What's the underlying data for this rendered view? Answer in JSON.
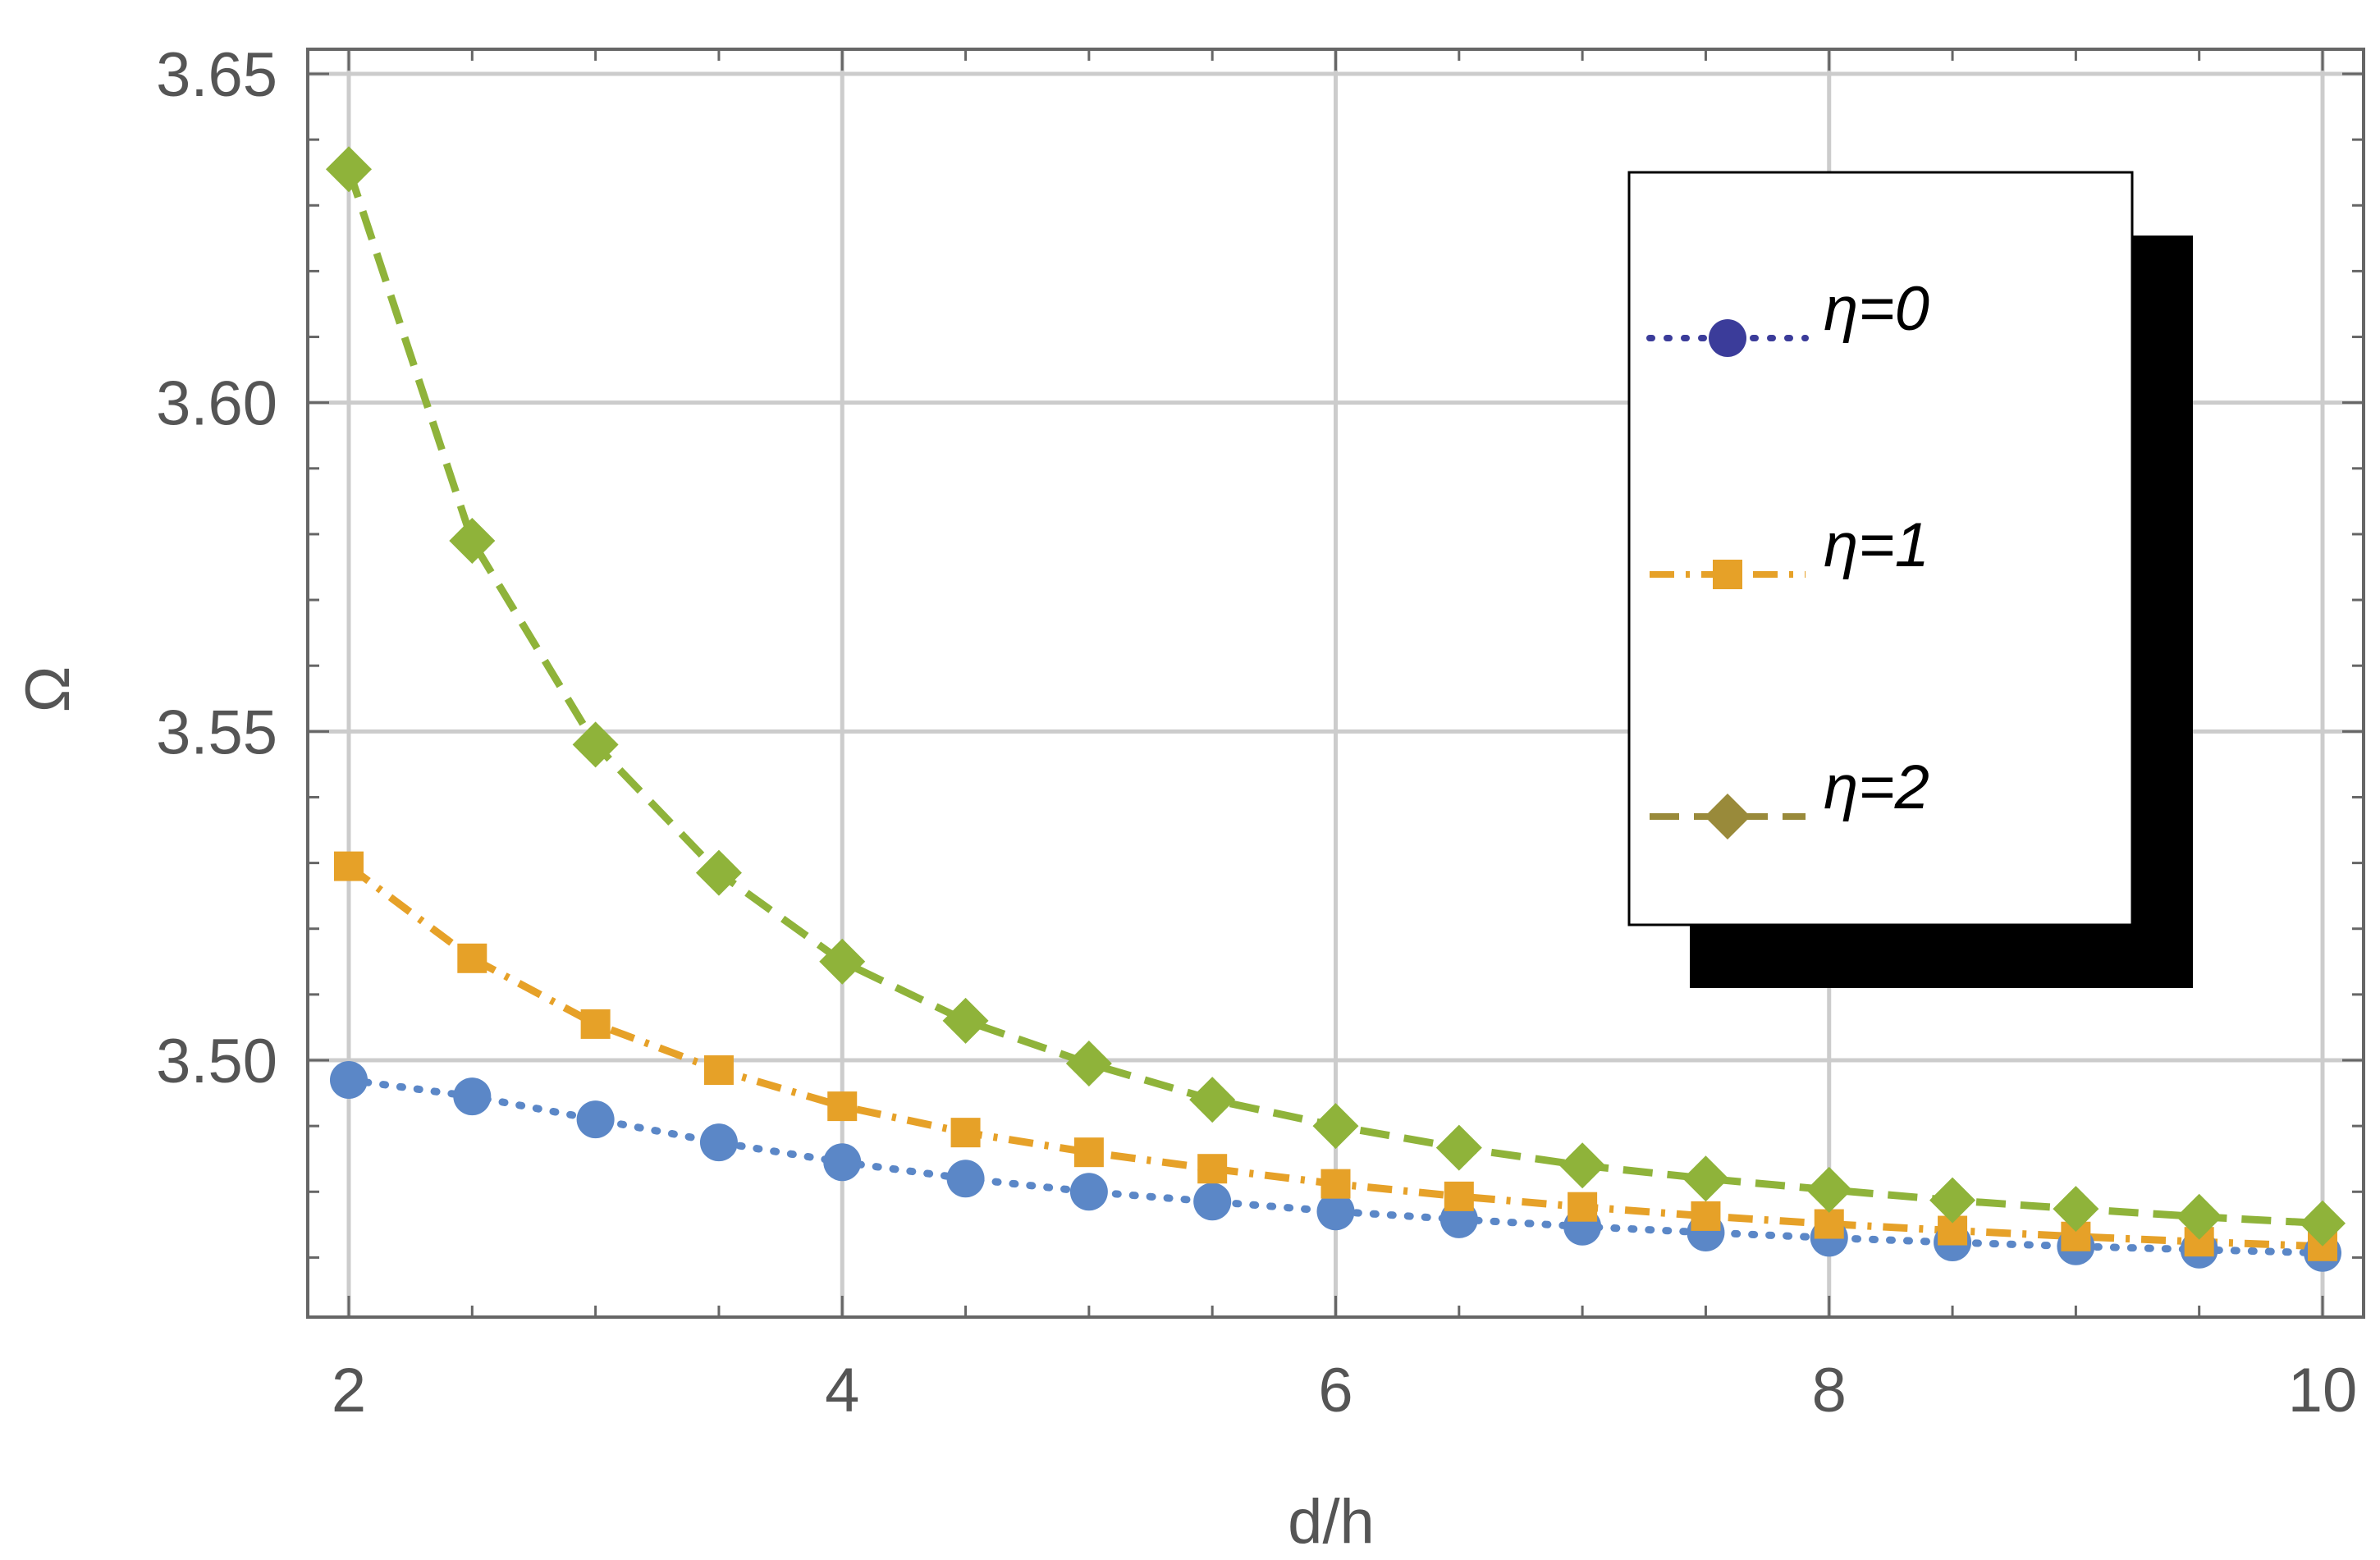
{
  "chart_data": {
    "type": "line",
    "xlabel": "d/h",
    "ylabel": "Ω",
    "xlim": [
      1.85,
      10.2
    ],
    "ylim": [
      3.4615,
      3.655
    ],
    "x_ticks": [
      2,
      4,
      6,
      8,
      10
    ],
    "x_tick_labels": [
      "2",
      "4",
      "6",
      "8",
      "10"
    ],
    "y_ticks": [
      3.5,
      3.55,
      3.6,
      3.65
    ],
    "y_tick_labels": [
      "3.50",
      "3.55",
      "3.60",
      "3.65"
    ],
    "grid": true,
    "legend_position": "top-right",
    "x": [
      2,
      2.5,
      3,
      3.5,
      4,
      4.5,
      5,
      5.5,
      6,
      6.5,
      7,
      7.5,
      8,
      8.5,
      9,
      9.5,
      10
    ],
    "series": [
      {
        "name": "η=0",
        "marker": "circle",
        "line_style": "dotted",
        "color": "#5b87c7",
        "legend_color": "#3b3c9a",
        "values": [
          3.497,
          3.4945,
          3.491,
          3.4875,
          3.4845,
          3.482,
          3.48,
          3.4785,
          3.477,
          3.4758,
          3.4747,
          3.4738,
          3.473,
          3.4723,
          3.4717,
          3.4712,
          3.4707
        ]
      },
      {
        "name": "η=1",
        "marker": "square",
        "line_style": "dashdot",
        "color": "#e6a128",
        "legend_color": "#e6a128",
        "values": [
          3.5295,
          3.5155,
          3.5055,
          3.4985,
          3.493,
          3.489,
          3.486,
          3.4835,
          3.4812,
          3.4793,
          3.4777,
          3.4763,
          3.4751,
          3.4741,
          3.4732,
          3.4724,
          3.4717
        ]
      },
      {
        "name": "η=2",
        "marker": "diamond",
        "line_style": "dashed",
        "color": "#8fb33a",
        "legend_color": "#998a3a",
        "values": [
          3.6355,
          3.579,
          3.548,
          3.5285,
          3.515,
          3.506,
          3.4995,
          3.494,
          3.49,
          3.4867,
          3.484,
          3.482,
          3.4803,
          3.4787,
          3.4774,
          3.4762,
          3.4752
        ]
      }
    ]
  }
}
